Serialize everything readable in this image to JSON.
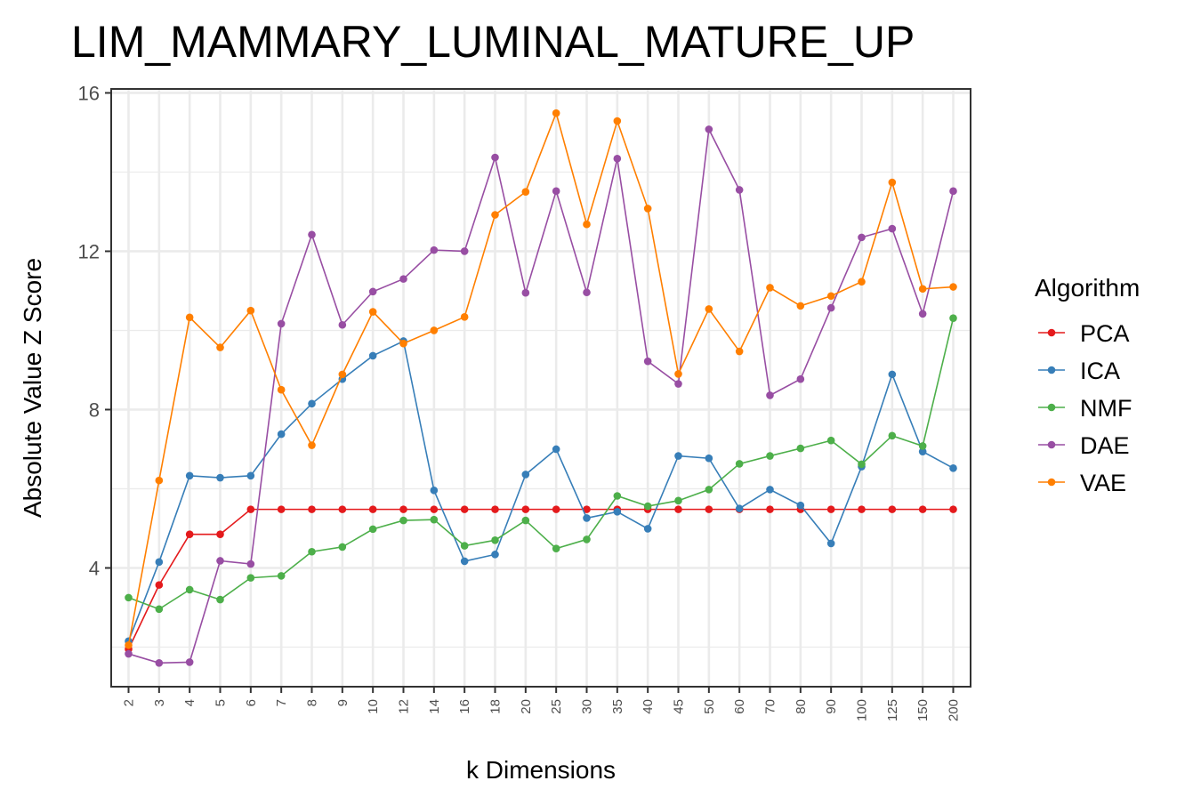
{
  "chart_data": {
    "type": "line",
    "title": "LIM_MAMMARY_LUMINAL_MATURE_UP",
    "xlabel": "k Dimensions",
    "ylabel": "Absolute Value Z Score",
    "categories": [
      "2",
      "3",
      "4",
      "5",
      "6",
      "7",
      "8",
      "9",
      "10",
      "12",
      "14",
      "16",
      "18",
      "20",
      "25",
      "30",
      "35",
      "40",
      "45",
      "50",
      "60",
      "70",
      "80",
      "90",
      "100",
      "125",
      "150",
      "200"
    ],
    "ylim": [
      1.0,
      16.1
    ],
    "yticks": [
      4,
      8,
      12,
      16
    ],
    "grid": true,
    "legend_title": "Algorithm",
    "legend_position": "right",
    "series": [
      {
        "name": "PCA",
        "color": "#e41a1c",
        "values": [
          1.95,
          3.57,
          4.85,
          4.85,
          5.48,
          5.48,
          5.48,
          5.48,
          5.48,
          5.48,
          5.48,
          5.48,
          5.48,
          5.48,
          5.48,
          5.48,
          5.48,
          5.48,
          5.48,
          5.48,
          5.48,
          5.48,
          5.48,
          5.48,
          5.48,
          5.48,
          5.48,
          5.48
        ]
      },
      {
        "name": "ICA",
        "color": "#377eb8",
        "values": [
          2.15,
          4.15,
          6.33,
          6.28,
          6.33,
          7.38,
          8.15,
          8.77,
          9.36,
          9.73,
          5.96,
          4.17,
          4.34,
          6.36,
          7.0,
          5.26,
          5.42,
          4.99,
          6.83,
          6.77,
          5.5,
          5.98,
          5.58,
          4.62,
          6.56,
          8.89,
          6.94,
          6.52
        ]
      },
      {
        "name": "NMF",
        "color": "#4daf4a",
        "values": [
          3.25,
          2.96,
          3.45,
          3.2,
          3.75,
          3.8,
          4.41,
          4.53,
          4.98,
          5.2,
          5.22,
          4.56,
          4.7,
          5.2,
          4.49,
          4.72,
          5.82,
          5.56,
          5.7,
          5.98,
          6.63,
          6.83,
          7.02,
          7.22,
          6.62,
          7.34,
          7.08,
          10.31
        ]
      },
      {
        "name": "DAE",
        "color": "#984ea3",
        "values": [
          1.83,
          1.6,
          1.62,
          4.18,
          4.1,
          10.17,
          12.42,
          10.14,
          10.98,
          11.3,
          12.03,
          12.0,
          14.37,
          10.95,
          13.52,
          10.96,
          14.34,
          9.22,
          8.65,
          15.08,
          13.55,
          8.36,
          8.77,
          10.57,
          12.35,
          12.57,
          10.42,
          13.52
        ]
      },
      {
        "name": "VAE",
        "color": "#ff7f00",
        "values": [
          2.05,
          6.21,
          10.33,
          9.57,
          10.5,
          8.5,
          7.1,
          8.89,
          10.47,
          9.67,
          10.0,
          10.34,
          12.92,
          13.5,
          15.49,
          12.68,
          15.29,
          13.08,
          8.9,
          10.54,
          9.47,
          11.08,
          10.62,
          10.87,
          11.23,
          13.74,
          11.05,
          11.1
        ]
      }
    ]
  }
}
